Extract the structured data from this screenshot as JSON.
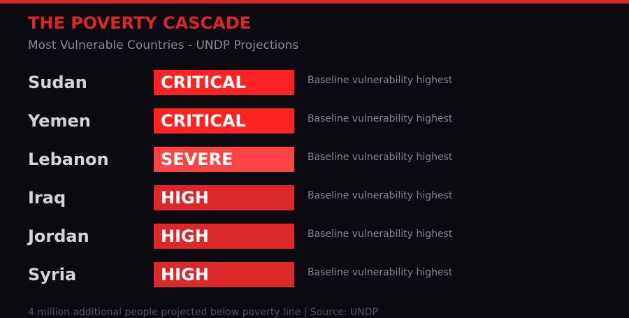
{
  "title": "THE POVERTY CASCADE",
  "subtitle": "Most Vulnerable Countries - UNDP Projections",
  "colors": {
    "accent": "#dc2626",
    "critical": "#ff2222",
    "severe": "#ff4444",
    "high": "#dc2828"
  },
  "rows": [
    {
      "country": "Sudan",
      "level": "CRITICAL",
      "note": "Baseline vulnerability highest",
      "color": "#ff2222"
    },
    {
      "country": "Yemen",
      "level": "CRITICAL",
      "note": "Baseline vulnerability highest",
      "color": "#ff2222"
    },
    {
      "country": "Lebanon",
      "level": "SEVERE",
      "note": "Baseline vulnerability highest",
      "color": "#ff4444"
    },
    {
      "country": "Iraq",
      "level": "HIGH",
      "note": "Baseline vulnerability highest",
      "color": "#dc2828"
    },
    {
      "country": "Jordan",
      "level": "HIGH",
      "note": "Baseline vulnerability highest",
      "color": "#dc2828"
    },
    {
      "country": "Syria",
      "level": "HIGH",
      "note": "Baseline vulnerability highest",
      "color": "#dc2828"
    }
  ],
  "footer": "4 million additional people projected below poverty line | Source: UNDP"
}
